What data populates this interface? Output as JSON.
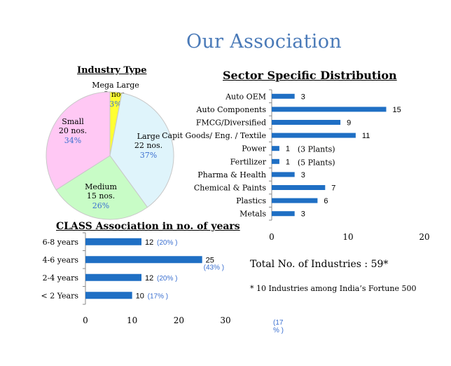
{
  "page": {
    "title": "Our Association"
  },
  "colors": {
    "bar": "#1f6fc4",
    "pct": "#3a6fd0",
    "title": "#4a7ab8"
  },
  "chart_data": [
    {
      "type": "pie",
      "title": "Industry Type",
      "slices": [
        {
          "name": "Mega Large",
          "count": "2 nos.",
          "pct": "3%",
          "value": 3,
          "color": "#ffff33"
        },
        {
          "name": "Large",
          "count": "22 nos.",
          "pct": "37%",
          "value": 37,
          "color": "#dff4fb"
        },
        {
          "name": "Medium",
          "count": "15 nos.",
          "pct": "26%",
          "value": 26,
          "color": "#c8fcc6"
        },
        {
          "name": "Small",
          "count": "20 nos.",
          "pct": "34%",
          "value": 34,
          "color": "#ffc8f4"
        }
      ]
    },
    {
      "type": "bar",
      "orientation": "horizontal",
      "title": "Sector Specific Distribution",
      "categories": [
        "Auto OEM",
        "Auto Components",
        "FMCG/Diversified",
        "Capit Goods/ Eng. / Textile",
        "Power",
        "Fertilizer",
        "Pharma & Health",
        "Chemical & Paints",
        "Plastics",
        "Metals"
      ],
      "values": [
        3,
        15,
        9,
        11,
        1,
        1,
        3,
        7,
        6,
        3
      ],
      "notes": [
        "",
        "",
        "",
        "",
        "(3 Plants)",
        "(5 Plants)",
        "",
        "",
        "",
        ""
      ],
      "xlim": [
        0,
        20
      ],
      "xticks": [
        "0",
        "10",
        "20"
      ],
      "grid": false
    },
    {
      "type": "bar",
      "orientation": "horizontal",
      "title": "CLASS Association in no. of years",
      "categories": [
        "6-8 years",
        "4-6 years",
        "2-4 years",
        "< 2 Years"
      ],
      "values": [
        12,
        25,
        12,
        10
      ],
      "pcts": [
        "(20% )",
        "(43% )",
        "(20% )",
        "(17% )"
      ],
      "xlim": [
        0,
        30
      ],
      "xticks": [
        "0",
        "10",
        "20",
        "30"
      ],
      "grid": false
    }
  ],
  "summary": {
    "total": "Total No. of Industries :  59*",
    "fortune": "* 10 Industries among India’s Fortune  500",
    "stray_pct": "(17\n% )"
  }
}
